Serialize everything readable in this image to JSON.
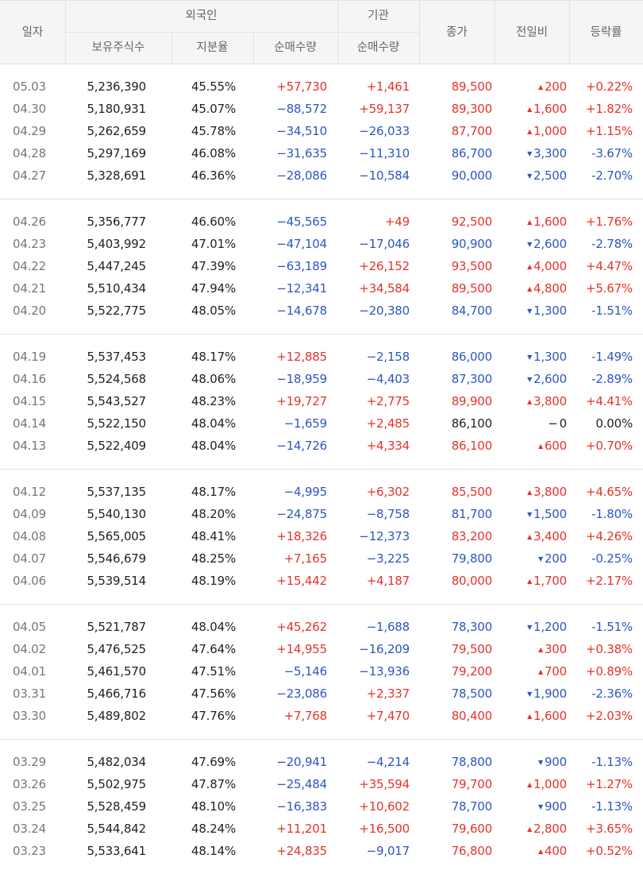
{
  "colors": {
    "up": "#e5332a",
    "down": "#2d56c0",
    "flat": "#222222",
    "header_bg": "#f5f5f5"
  },
  "icons": {
    "up": "up-triangle-icon",
    "down": "down-triangle-icon",
    "flat": "dash-icon"
  },
  "header": {
    "date": "일자",
    "foreign": "외국인",
    "holdings": "보유주식수",
    "ratio": "지분율",
    "foreign_net": "순매수량",
    "institution": "기관",
    "inst_net": "순매수량",
    "close": "종가",
    "change": "전일비",
    "rate": "등락률"
  },
  "groups": [
    [
      {
        "date": "05.03",
        "holdings": "5,236,390",
        "ratio": "45.55%",
        "foreign_net": "+57,730",
        "inst_net": "+1,461",
        "close": "89,500",
        "dir": "up",
        "change": "200",
        "rate": "+0.22%"
      },
      {
        "date": "04.30",
        "holdings": "5,180,931",
        "ratio": "45.07%",
        "foreign_net": "−88,572",
        "inst_net": "+59,137",
        "close": "89,300",
        "dir": "up",
        "change": "1,600",
        "rate": "+1.82%"
      },
      {
        "date": "04.29",
        "holdings": "5,262,659",
        "ratio": "45.78%",
        "foreign_net": "−34,510",
        "inst_net": "−26,033",
        "close": "87,700",
        "dir": "up",
        "change": "1,000",
        "rate": "+1.15%"
      },
      {
        "date": "04.28",
        "holdings": "5,297,169",
        "ratio": "46.08%",
        "foreign_net": "−31,635",
        "inst_net": "−11,310",
        "close": "86,700",
        "dir": "down",
        "change": "3,300",
        "rate": "-3.67%"
      },
      {
        "date": "04.27",
        "holdings": "5,328,691",
        "ratio": "46.36%",
        "foreign_net": "−28,086",
        "inst_net": "−10,584",
        "close": "90,000",
        "dir": "down",
        "change": "2,500",
        "rate": "-2.70%"
      }
    ],
    [
      {
        "date": "04.26",
        "holdings": "5,356,777",
        "ratio": "46.60%",
        "foreign_net": "−45,565",
        "inst_net": "+49",
        "close": "92,500",
        "dir": "up",
        "change": "1,600",
        "rate": "+1.76%"
      },
      {
        "date": "04.23",
        "holdings": "5,403,992",
        "ratio": "47.01%",
        "foreign_net": "−47,104",
        "inst_net": "−17,046",
        "close": "90,900",
        "dir": "down",
        "change": "2,600",
        "rate": "-2.78%"
      },
      {
        "date": "04.22",
        "holdings": "5,447,245",
        "ratio": "47.39%",
        "foreign_net": "−63,189",
        "inst_net": "+26,152",
        "close": "93,500",
        "dir": "up",
        "change": "4,000",
        "rate": "+4.47%"
      },
      {
        "date": "04.21",
        "holdings": "5,510,434",
        "ratio": "47.94%",
        "foreign_net": "−12,341",
        "inst_net": "+34,584",
        "close": "89,500",
        "dir": "up",
        "change": "4,800",
        "rate": "+5.67%"
      },
      {
        "date": "04.20",
        "holdings": "5,522,775",
        "ratio": "48.05%",
        "foreign_net": "−14,678",
        "inst_net": "−20,380",
        "close": "84,700",
        "dir": "down",
        "change": "1,300",
        "rate": "-1.51%"
      }
    ],
    [
      {
        "date": "04.19",
        "holdings": "5,537,453",
        "ratio": "48.17%",
        "foreign_net": "+12,885",
        "inst_net": "−2,158",
        "close": "86,000",
        "dir": "down",
        "change": "1,300",
        "rate": "-1.49%"
      },
      {
        "date": "04.16",
        "holdings": "5,524,568",
        "ratio": "48.06%",
        "foreign_net": "−18,959",
        "inst_net": "−4,403",
        "close": "87,300",
        "dir": "down",
        "change": "2,600",
        "rate": "-2.89%"
      },
      {
        "date": "04.15",
        "holdings": "5,543,527",
        "ratio": "48.23%",
        "foreign_net": "+19,727",
        "inst_net": "+2,775",
        "close": "89,900",
        "dir": "up",
        "change": "3,800",
        "rate": "+4.41%"
      },
      {
        "date": "04.14",
        "holdings": "5,522,150",
        "ratio": "48.04%",
        "foreign_net": "−1,659",
        "inst_net": "+2,485",
        "close": "86,100",
        "dir": "flat",
        "change": "0",
        "rate": "0.00%"
      },
      {
        "date": "04.13",
        "holdings": "5,522,409",
        "ratio": "48.04%",
        "foreign_net": "−14,726",
        "inst_net": "+4,334",
        "close": "86,100",
        "dir": "up",
        "change": "600",
        "rate": "+0.70%"
      }
    ],
    [
      {
        "date": "04.12",
        "holdings": "5,537,135",
        "ratio": "48.17%",
        "foreign_net": "−4,995",
        "inst_net": "+6,302",
        "close": "85,500",
        "dir": "up",
        "change": "3,800",
        "rate": "+4.65%"
      },
      {
        "date": "04.09",
        "holdings": "5,540,130",
        "ratio": "48.20%",
        "foreign_net": "−24,875",
        "inst_net": "−8,758",
        "close": "81,700",
        "dir": "down",
        "change": "1,500",
        "rate": "-1.80%"
      },
      {
        "date": "04.08",
        "holdings": "5,565,005",
        "ratio": "48.41%",
        "foreign_net": "+18,326",
        "inst_net": "−12,373",
        "close": "83,200",
        "dir": "up",
        "change": "3,400",
        "rate": "+4.26%"
      },
      {
        "date": "04.07",
        "holdings": "5,546,679",
        "ratio": "48.25%",
        "foreign_net": "+7,165",
        "inst_net": "−3,225",
        "close": "79,800",
        "dir": "down",
        "change": "200",
        "rate": "-0.25%"
      },
      {
        "date": "04.06",
        "holdings": "5,539,514",
        "ratio": "48.19%",
        "foreign_net": "+15,442",
        "inst_net": "+4,187",
        "close": "80,000",
        "dir": "up",
        "change": "1,700",
        "rate": "+2.17%"
      }
    ],
    [
      {
        "date": "04.05",
        "holdings": "5,521,787",
        "ratio": "48.04%",
        "foreign_net": "+45,262",
        "inst_net": "−1,688",
        "close": "78,300",
        "dir": "down",
        "change": "1,200",
        "rate": "-1.51%"
      },
      {
        "date": "04.02",
        "holdings": "5,476,525",
        "ratio": "47.64%",
        "foreign_net": "+14,955",
        "inst_net": "−16,209",
        "close": "79,500",
        "dir": "up",
        "change": "300",
        "rate": "+0.38%"
      },
      {
        "date": "04.01",
        "holdings": "5,461,570",
        "ratio": "47.51%",
        "foreign_net": "−5,146",
        "inst_net": "−13,936",
        "close": "79,200",
        "dir": "up",
        "change": "700",
        "rate": "+0.89%"
      },
      {
        "date": "03.31",
        "holdings": "5,466,716",
        "ratio": "47.56%",
        "foreign_net": "−23,086",
        "inst_net": "+2,337",
        "close": "78,500",
        "dir": "down",
        "change": "1,900",
        "rate": "-2.36%"
      },
      {
        "date": "03.30",
        "holdings": "5,489,802",
        "ratio": "47.76%",
        "foreign_net": "+7,768",
        "inst_net": "+7,470",
        "close": "80,400",
        "dir": "up",
        "change": "1,600",
        "rate": "+2.03%"
      }
    ],
    [
      {
        "date": "03.29",
        "holdings": "5,482,034",
        "ratio": "47.69%",
        "foreign_net": "−20,941",
        "inst_net": "−4,214",
        "close": "78,800",
        "dir": "down",
        "change": "900",
        "rate": "-1.13%"
      },
      {
        "date": "03.26",
        "holdings": "5,502,975",
        "ratio": "47.87%",
        "foreign_net": "−25,484",
        "inst_net": "+35,594",
        "close": "79,700",
        "dir": "up",
        "change": "1,000",
        "rate": "+1.27%"
      },
      {
        "date": "03.25",
        "holdings": "5,528,459",
        "ratio": "48.10%",
        "foreign_net": "−16,383",
        "inst_net": "+10,602",
        "close": "78,700",
        "dir": "down",
        "change": "900",
        "rate": "-1.13%"
      },
      {
        "date": "03.24",
        "holdings": "5,544,842",
        "ratio": "48.24%",
        "foreign_net": "+11,201",
        "inst_net": "+16,500",
        "close": "79,600",
        "dir": "up",
        "change": "2,800",
        "rate": "+3.65%"
      },
      {
        "date": "03.23",
        "holdings": "5,533,641",
        "ratio": "48.14%",
        "foreign_net": "+24,835",
        "inst_net": "−9,017",
        "close": "76,800",
        "dir": "up",
        "change": "400",
        "rate": "+0.52%"
      }
    ]
  ]
}
